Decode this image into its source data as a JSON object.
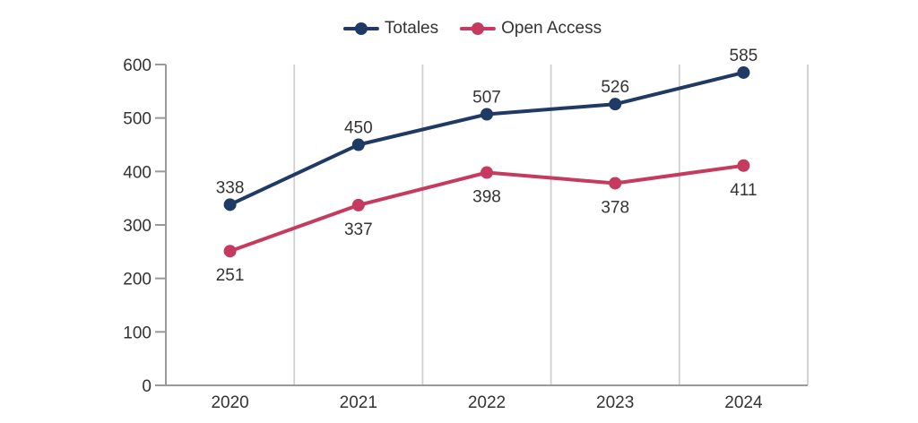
{
  "chart_data": {
    "type": "line",
    "categories": [
      "2020",
      "2021",
      "2022",
      "2023",
      "2024"
    ],
    "series": [
      {
        "name": "Totales",
        "values": [
          338,
          450,
          507,
          526,
          585
        ],
        "color": "#1f3a64",
        "label_position": "above"
      },
      {
        "name": "Open Access",
        "values": [
          251,
          337,
          398,
          378,
          411
        ],
        "color": "#c63a5f",
        "label_position": "below"
      }
    ],
    "title": "",
    "xlabel": "",
    "ylabel": "",
    "ylim": [
      0,
      600
    ],
    "ytick_step": 100,
    "yticks": [
      0,
      100,
      200,
      300,
      400,
      500,
      600
    ],
    "grid": "vertical-between-categories",
    "legend_position": "top-center",
    "colors": {
      "axis": "#999999",
      "grid": "#cfcfcf",
      "text": "#333333",
      "background": "#ffffff"
    }
  }
}
